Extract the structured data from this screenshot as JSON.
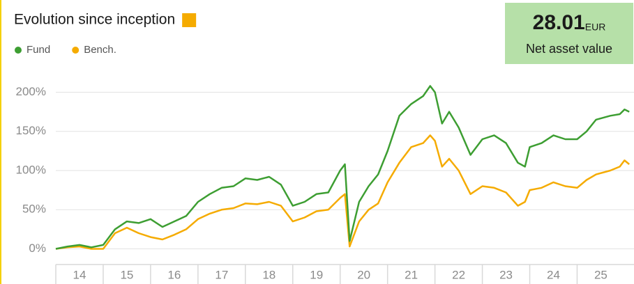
{
  "chart_data": {
    "type": "line",
    "title": "Evolution since inception",
    "nav_value": "28.01",
    "nav_unit": "EUR",
    "nav_label": "Net asset value",
    "xlim": [
      14,
      26.2
    ],
    "xticks": [
      {
        "value": 14,
        "label": "14"
      },
      {
        "value": 15,
        "label": "15"
      },
      {
        "value": 16,
        "label": "16"
      },
      {
        "value": 17,
        "label": "17"
      },
      {
        "value": 18,
        "label": "18"
      },
      {
        "value": 19,
        "label": "19"
      },
      {
        "value": 20,
        "label": "20"
      },
      {
        "value": 21,
        "label": "21"
      },
      {
        "value": 22,
        "label": "22"
      },
      {
        "value": 23,
        "label": "23"
      },
      {
        "value": 24,
        "label": "24"
      },
      {
        "value": 25,
        "label": "25"
      }
    ],
    "ylim": [
      -20,
      220
    ],
    "yticks": [
      {
        "value": 0,
        "label": "0%"
      },
      {
        "value": 50,
        "label": "50%"
      },
      {
        "value": 100,
        "label": "100%"
      },
      {
        "value": 150,
        "label": "150%"
      },
      {
        "value": 200,
        "label": "200%"
      }
    ],
    "grid": true,
    "x": [
      14.0,
      14.25,
      14.5,
      14.75,
      15.0,
      15.25,
      15.5,
      15.75,
      16.0,
      16.25,
      16.5,
      16.75,
      17.0,
      17.25,
      17.5,
      17.75,
      18.0,
      18.25,
      18.5,
      18.75,
      19.0,
      19.25,
      19.5,
      19.75,
      20.0,
      20.1,
      20.2,
      20.4,
      20.6,
      20.8,
      21.0,
      21.25,
      21.5,
      21.75,
      21.9,
      22.0,
      22.15,
      22.3,
      22.5,
      22.75,
      23.0,
      23.25,
      23.5,
      23.75,
      23.9,
      24.0,
      24.25,
      24.5,
      24.75,
      25.0,
      25.2,
      25.4,
      25.7,
      25.9,
      26.0,
      26.1
    ],
    "series": [
      {
        "name": "Fund",
        "color": "#3d9e32",
        "values": [
          0,
          3,
          5,
          2,
          5,
          25,
          35,
          33,
          38,
          28,
          35,
          42,
          60,
          70,
          78,
          80,
          90,
          88,
          92,
          82,
          55,
          60,
          70,
          72,
          100,
          108,
          10,
          60,
          80,
          95,
          125,
          170,
          185,
          195,
          208,
          200,
          160,
          175,
          155,
          120,
          140,
          145,
          135,
          110,
          105,
          130,
          135,
          145,
          140,
          140,
          150,
          165,
          170,
          172,
          178,
          175
        ]
      },
      {
        "name": "Bench.",
        "color": "#f5ab00",
        "values": [
          0,
          2,
          3,
          0,
          0,
          20,
          27,
          20,
          15,
          12,
          18,
          25,
          38,
          45,
          50,
          52,
          58,
          57,
          60,
          55,
          35,
          40,
          48,
          50,
          65,
          70,
          3,
          35,
          50,
          58,
          85,
          110,
          130,
          135,
          145,
          138,
          105,
          115,
          100,
          70,
          80,
          78,
          72,
          55,
          60,
          75,
          78,
          85,
          80,
          78,
          88,
          95,
          100,
          105,
          113,
          108
        ]
      }
    ]
  }
}
